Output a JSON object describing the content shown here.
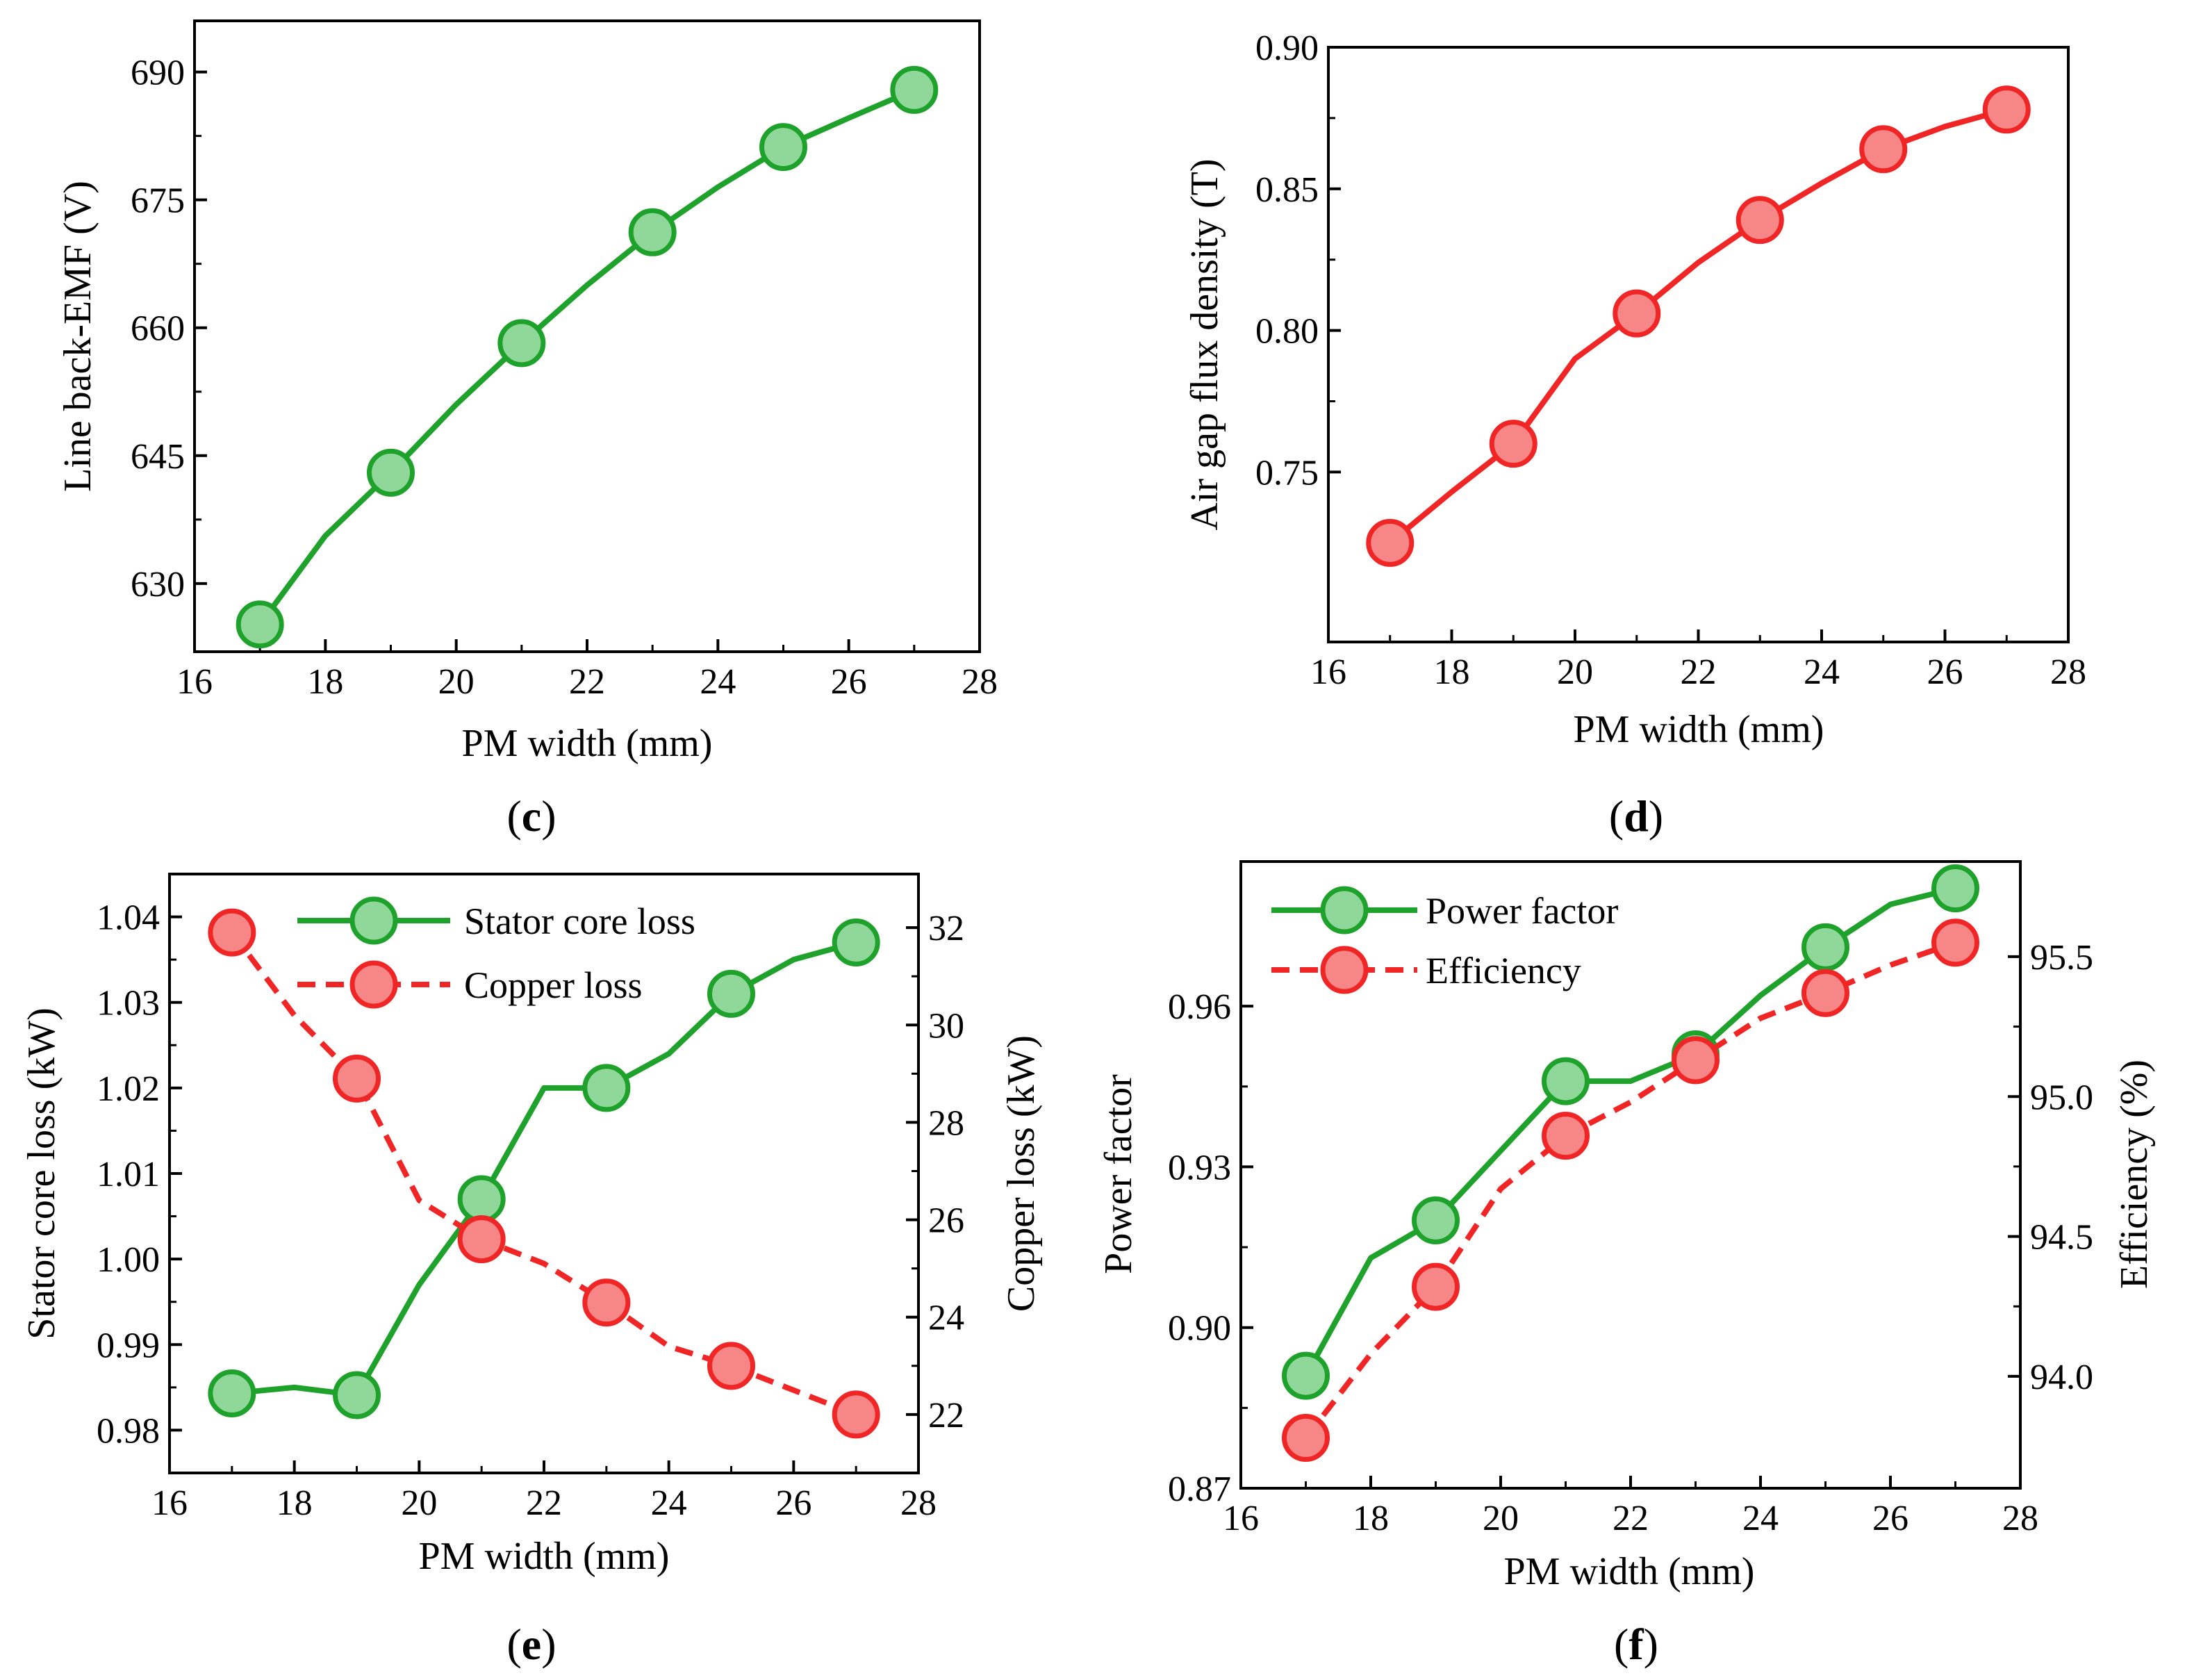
{
  "colors": {
    "green_line": "#1fa22b",
    "green_fill": "#8fd89a",
    "red_line": "#f02525",
    "red_fill": "#f78787",
    "axis": "#000000"
  },
  "chart_data": [
    {
      "id": "c",
      "type": "line",
      "panel_label": "c",
      "xlabel": "PM width (mm)",
      "ylabel": "Line back-EMF (V)",
      "xlim": [
        16,
        28
      ],
      "ylim": [
        622,
        696
      ],
      "xticks": [
        16,
        18,
        20,
        22,
        24,
        26,
        28
      ],
      "xtick_labels": [
        "16",
        "18",
        "20",
        "22",
        "24",
        "26",
        "28"
      ],
      "yticks": [
        630,
        645,
        660,
        675,
        690
      ],
      "ytick_labels": [
        "630",
        "645",
        "660",
        "675",
        "690"
      ],
      "series": [
        {
          "name": "Line back-EMF",
          "color": "green",
          "dash": "solid",
          "x": [
            17,
            18,
            19,
            20,
            21,
            22,
            23,
            24,
            25,
            26,
            27
          ],
          "values": [
            625.2,
            635.6,
            643.0,
            651.0,
            658.2,
            665.0,
            671.2,
            676.5,
            681.2,
            684.6,
            687.9
          ],
          "marker_x": [
            17,
            19,
            21,
            23,
            25,
            27
          ],
          "marker_values": [
            625.2,
            643.0,
            658.2,
            671.2,
            681.2,
            687.9
          ]
        }
      ]
    },
    {
      "id": "d",
      "type": "line",
      "panel_label": "d",
      "xlabel": "PM width (mm)",
      "ylabel": "Air gap flux density (T)",
      "xlim": [
        16,
        28
      ],
      "ylim": [
        0.69,
        0.9
      ],
      "xticks": [
        16,
        18,
        20,
        22,
        24,
        26,
        28
      ],
      "xtick_labels": [
        "16",
        "18",
        "20",
        "22",
        "24",
        "26",
        "28"
      ],
      "yticks": [
        0.75,
        0.8,
        0.85,
        0.9
      ],
      "ytick_labels": [
        "0.75",
        "0.80",
        "0.85",
        "0.90"
      ],
      "series": [
        {
          "name": "Air gap flux density",
          "color": "red",
          "dash": "solid",
          "x": [
            17,
            18,
            19,
            20,
            21,
            22,
            23,
            24,
            25,
            26,
            27
          ],
          "values": [
            0.725,
            0.743,
            0.76,
            0.79,
            0.806,
            0.824,
            0.839,
            0.852,
            0.864,
            0.872,
            0.878
          ],
          "marker_x": [
            17,
            19,
            21,
            23,
            25,
            27
          ],
          "marker_values": [
            0.725,
            0.76,
            0.806,
            0.839,
            0.864,
            0.878
          ]
        }
      ]
    },
    {
      "id": "e",
      "type": "line",
      "panel_label": "e",
      "xlabel": "PM width (mm)",
      "ylabel": "Stator core loss (kW)",
      "ylabel_right": "Copper loss (kW)",
      "xlim": [
        16,
        28
      ],
      "ylim": [
        0.975,
        1.045
      ],
      "ylim_right": [
        20.8,
        33.1
      ],
      "xticks": [
        16,
        18,
        20,
        22,
        24,
        26,
        28
      ],
      "xtick_labels": [
        "16",
        "18",
        "20",
        "22",
        "24",
        "26",
        "28"
      ],
      "yticks": [
        0.98,
        0.99,
        1.0,
        1.01,
        1.02,
        1.03,
        1.04
      ],
      "ytick_labels": [
        "0.98",
        "0.99",
        "1.00",
        "1.01",
        "1.02",
        "1.03",
        "1.04"
      ],
      "yticks_right": [
        22,
        24,
        26,
        28,
        30,
        32
      ],
      "ytick_labels_right": [
        "22",
        "24",
        "26",
        "28",
        "30",
        "32"
      ],
      "legend_position": "top-center",
      "series": [
        {
          "name": "Stator core loss",
          "axis": "left",
          "color": "green",
          "dash": "solid",
          "x": [
            17,
            18,
            19,
            20,
            21,
            22,
            23,
            24,
            25,
            26,
            27
          ],
          "values": [
            0.9843,
            0.985,
            0.9841,
            0.997,
            1.007,
            1.02,
            1.02,
            1.024,
            1.031,
            1.035,
            1.037
          ],
          "marker_x": [
            17,
            19,
            21,
            23,
            25,
            27
          ],
          "marker_values": [
            0.9843,
            0.9841,
            1.007,
            1.02,
            1.031,
            1.037
          ]
        },
        {
          "name": "Copper loss",
          "axis": "right",
          "color": "red",
          "dash": "dashed",
          "x": [
            17,
            18,
            19,
            20,
            21,
            22,
            23,
            24,
            25,
            26,
            27
          ],
          "values": [
            31.9,
            30.2,
            28.9,
            26.4,
            25.6,
            25.1,
            24.3,
            23.4,
            23.0,
            22.5,
            22.0
          ],
          "marker_x": [
            17,
            19,
            21,
            23,
            25,
            27
          ],
          "marker_values": [
            31.9,
            28.9,
            25.6,
            24.3,
            23.0,
            22.0
          ]
        }
      ]
    },
    {
      "id": "f",
      "type": "line",
      "panel_label": "f",
      "xlabel": "PM width (mm)",
      "ylabel": "Power factor",
      "ylabel_right": "Efficiency (%)",
      "xlim": [
        16,
        28
      ],
      "ylim": [
        0.87,
        0.987
      ],
      "ylim_right": [
        93.6,
        95.84
      ],
      "xticks": [
        16,
        18,
        20,
        22,
        24,
        26,
        28
      ],
      "xtick_labels": [
        "16",
        "18",
        "20",
        "22",
        "24",
        "26",
        "28"
      ],
      "yticks": [
        0.87,
        0.9,
        0.93,
        0.96
      ],
      "ytick_labels": [
        "0.87",
        "0.90",
        "0.93",
        "0.96"
      ],
      "yticks_right": [
        94.0,
        94.5,
        95.0,
        95.5
      ],
      "ytick_labels_right": [
        "94.0",
        "94.5",
        "95.0",
        "95.5"
      ],
      "legend_position": "top-left",
      "series": [
        {
          "name": "Power factor",
          "axis": "left",
          "color": "green",
          "dash": "solid",
          "x": [
            17,
            18,
            19,
            20,
            21,
            22,
            23,
            24,
            25,
            26,
            27
          ],
          "values": [
            0.891,
            0.913,
            0.92,
            0.933,
            0.946,
            0.946,
            0.951,
            0.962,
            0.971,
            0.979,
            0.982
          ],
          "marker_x": [
            17,
            19,
            21,
            23,
            25,
            27
          ],
          "marker_values": [
            0.891,
            0.92,
            0.946,
            0.951,
            0.971,
            0.982
          ]
        },
        {
          "name": "Efficiency",
          "axis": "right",
          "color": "red",
          "dash": "dashed",
          "x": [
            17,
            18,
            19,
            20,
            21,
            22,
            23,
            24,
            25,
            26,
            27
          ],
          "values": [
            93.78,
            94.08,
            94.32,
            94.67,
            94.86,
            94.98,
            95.13,
            95.28,
            95.37,
            95.47,
            95.55
          ],
          "marker_x": [
            17,
            19,
            21,
            23,
            25,
            27
          ],
          "marker_values": [
            93.78,
            94.32,
            94.86,
            95.13,
            95.37,
            95.55
          ]
        }
      ]
    }
  ]
}
